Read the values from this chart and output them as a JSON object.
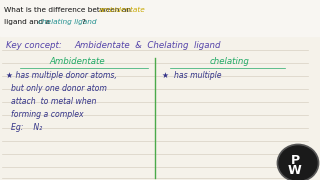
{
  "top_bg": "#f0ede8",
  "notebook_bg": "#f5f2ea",
  "line_color": "#d0c8b8",
  "divider_color": "#4aaa4a",
  "top_text_plain1": "What is the difference between an ",
  "top_text_colored1": "ambidentate",
  "top_text_line2_plain1": "ligand and a ",
  "top_text_colored2": "chelating ligand",
  "top_text_line2_plain2": "?",
  "top_color1": "#c8a800",
  "top_color2": "#229090",
  "key_color": "#5544aa",
  "header_color": "#22aa66",
  "body_color": "#333388",
  "eg_color": "#333388",
  "pw_bg": "#222222",
  "pw_text": "#ffffff",
  "ambidentate_header": "Ambidentate",
  "chelating_header": "chelating",
  "key_line": "Key concept:   Ambidentate  &  Chelating  ligand",
  "amb_lines": [
    "★ has multiple donor atoms,",
    "  but only one donor atom",
    "  attach  to metal when",
    "  forming a complex",
    "  Eg:    N₂"
  ],
  "chel_line1": "★  has multiple"
}
